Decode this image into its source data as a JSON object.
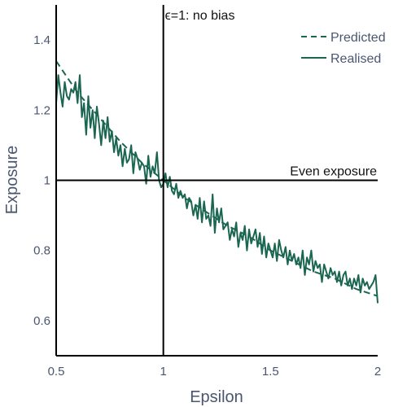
{
  "chart_data": {
    "type": "line",
    "xlabel": "Epsilon",
    "ylabel": "Exposure",
    "xlim": [
      0.5,
      2.0
    ],
    "ylim": [
      0.5,
      1.5
    ],
    "x_ticks": [
      0.5,
      1,
      1.5,
      2
    ],
    "x_tick_labels": [
      "0.5",
      "1",
      "1.5",
      "2"
    ],
    "y_ticks": [
      0.6,
      0.8,
      1.0,
      1.2,
      1.4
    ],
    "y_tick_labels": [
      "0.6",
      "0.8",
      "1",
      "1.2",
      "1.4"
    ],
    "grid": false,
    "legend_position": "top-right",
    "colors": {
      "series": "#1a6650",
      "reference": "#000000"
    },
    "series": [
      {
        "name": "Predicted",
        "style": "dashed",
        "x": [
          0.5,
          0.6,
          0.7,
          0.8,
          0.9,
          1.0,
          1.1,
          1.2,
          1.3,
          1.4,
          1.5,
          1.6,
          1.7,
          1.8,
          1.9,
          2.0
        ],
        "values": [
          1.34,
          1.25,
          1.18,
          1.11,
          1.05,
          1.0,
          0.95,
          0.91,
          0.87,
          0.84,
          0.8,
          0.77,
          0.74,
          0.72,
          0.69,
          0.67
        ]
      },
      {
        "name": "Realised",
        "style": "solid",
        "x": [
          0.5,
          0.51,
          0.52,
          0.53,
          0.54,
          0.55,
          0.56,
          0.57,
          0.58,
          0.59,
          0.6,
          0.61,
          0.62,
          0.63,
          0.64,
          0.65,
          0.66,
          0.67,
          0.68,
          0.69,
          0.7,
          0.71,
          0.72,
          0.73,
          0.74,
          0.75,
          0.76,
          0.77,
          0.78,
          0.79,
          0.8,
          0.81,
          0.82,
          0.83,
          0.84,
          0.85,
          0.86,
          0.87,
          0.88,
          0.89,
          0.9,
          0.91,
          0.92,
          0.93,
          0.94,
          0.95,
          0.96,
          0.97,
          0.98,
          0.99,
          1.0,
          1.01,
          1.02,
          1.03,
          1.04,
          1.05,
          1.06,
          1.07,
          1.08,
          1.09,
          1.1,
          1.11,
          1.12,
          1.13,
          1.14,
          1.15,
          1.16,
          1.17,
          1.18,
          1.19,
          1.2,
          1.21,
          1.22,
          1.23,
          1.24,
          1.25,
          1.26,
          1.27,
          1.28,
          1.29,
          1.3,
          1.31,
          1.32,
          1.33,
          1.34,
          1.35,
          1.36,
          1.37,
          1.38,
          1.39,
          1.4,
          1.41,
          1.42,
          1.43,
          1.44,
          1.45,
          1.46,
          1.47,
          1.48,
          1.49,
          1.5,
          1.51,
          1.52,
          1.53,
          1.54,
          1.55,
          1.56,
          1.57,
          1.58,
          1.59,
          1.6,
          1.61,
          1.62,
          1.63,
          1.64,
          1.65,
          1.66,
          1.67,
          1.68,
          1.69,
          1.7,
          1.71,
          1.72,
          1.73,
          1.74,
          1.75,
          1.76,
          1.77,
          1.78,
          1.79,
          1.8,
          1.81,
          1.82,
          1.83,
          1.84,
          1.85,
          1.86,
          1.87,
          1.88,
          1.89,
          1.9,
          1.91,
          1.92,
          1.93,
          1.94,
          1.95,
          1.96,
          1.97,
          1.98,
          1.99,
          2.0
        ],
        "values": [
          1.22,
          1.3,
          1.25,
          1.21,
          1.28,
          1.24,
          1.23,
          1.26,
          1.25,
          1.28,
          1.22,
          1.3,
          1.18,
          1.22,
          1.13,
          1.24,
          1.15,
          1.2,
          1.12,
          1.21,
          1.16,
          1.1,
          1.17,
          1.12,
          1.18,
          1.11,
          1.14,
          1.08,
          1.12,
          1.07,
          1.1,
          1.04,
          1.09,
          1.05,
          1.06,
          1.1,
          1.02,
          1.08,
          1.06,
          1.03,
          1.05,
          1.04,
          0.99,
          1.07,
          1.01,
          1.04,
          1.02,
          1.08,
          1.0,
          0.98,
          0.99,
          1.02,
          0.98,
          1.01,
          0.97,
          0.96,
          0.99,
          0.95,
          0.97,
          0.95,
          0.96,
          0.92,
          0.95,
          0.94,
          0.9,
          0.93,
          0.89,
          0.95,
          0.88,
          0.94,
          0.89,
          0.9,
          0.87,
          0.96,
          0.85,
          0.92,
          0.88,
          0.92,
          0.86,
          0.87,
          0.88,
          0.83,
          0.86,
          0.84,
          0.88,
          0.81,
          0.85,
          0.83,
          0.87,
          0.8,
          0.86,
          0.82,
          0.84,
          0.86,
          0.81,
          0.85,
          0.79,
          0.84,
          0.78,
          0.82,
          0.8,
          0.78,
          0.82,
          0.77,
          0.83,
          0.8,
          0.78,
          0.81,
          0.76,
          0.8,
          0.77,
          0.79,
          0.76,
          0.78,
          0.75,
          0.8,
          0.73,
          0.78,
          0.76,
          0.8,
          0.74,
          0.77,
          0.75,
          0.76,
          0.71,
          0.76,
          0.74,
          0.72,
          0.75,
          0.73,
          0.74,
          0.71,
          0.74,
          0.7,
          0.73,
          0.74,
          0.7,
          0.72,
          0.69,
          0.72,
          0.7,
          0.73,
          0.68,
          0.72,
          0.7,
          0.71,
          0.69,
          0.7,
          0.71,
          0.73,
          0.65
        ]
      }
    ],
    "reference_lines": [
      {
        "orientation": "vertical",
        "value": 1.0,
        "label": "ϵ=1: no bias"
      },
      {
        "orientation": "horizontal",
        "value": 1.0,
        "label": "Even exposure"
      }
    ]
  }
}
